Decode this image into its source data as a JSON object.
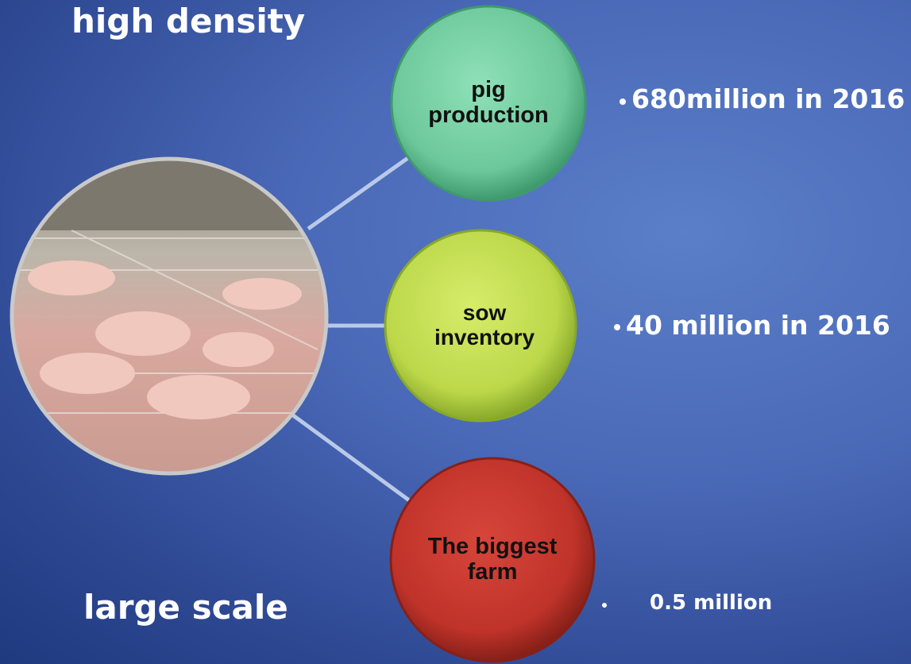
{
  "headings": {
    "top": "high density",
    "bottom": "large scale"
  },
  "nodes": [
    {
      "label": "pig production",
      "detail": "680million in 2016"
    },
    {
      "label": "sow inventory",
      "detail": "40 million in 2016"
    },
    {
      "label": "The biggest farm",
      "detail": "0.5 million"
    }
  ]
}
